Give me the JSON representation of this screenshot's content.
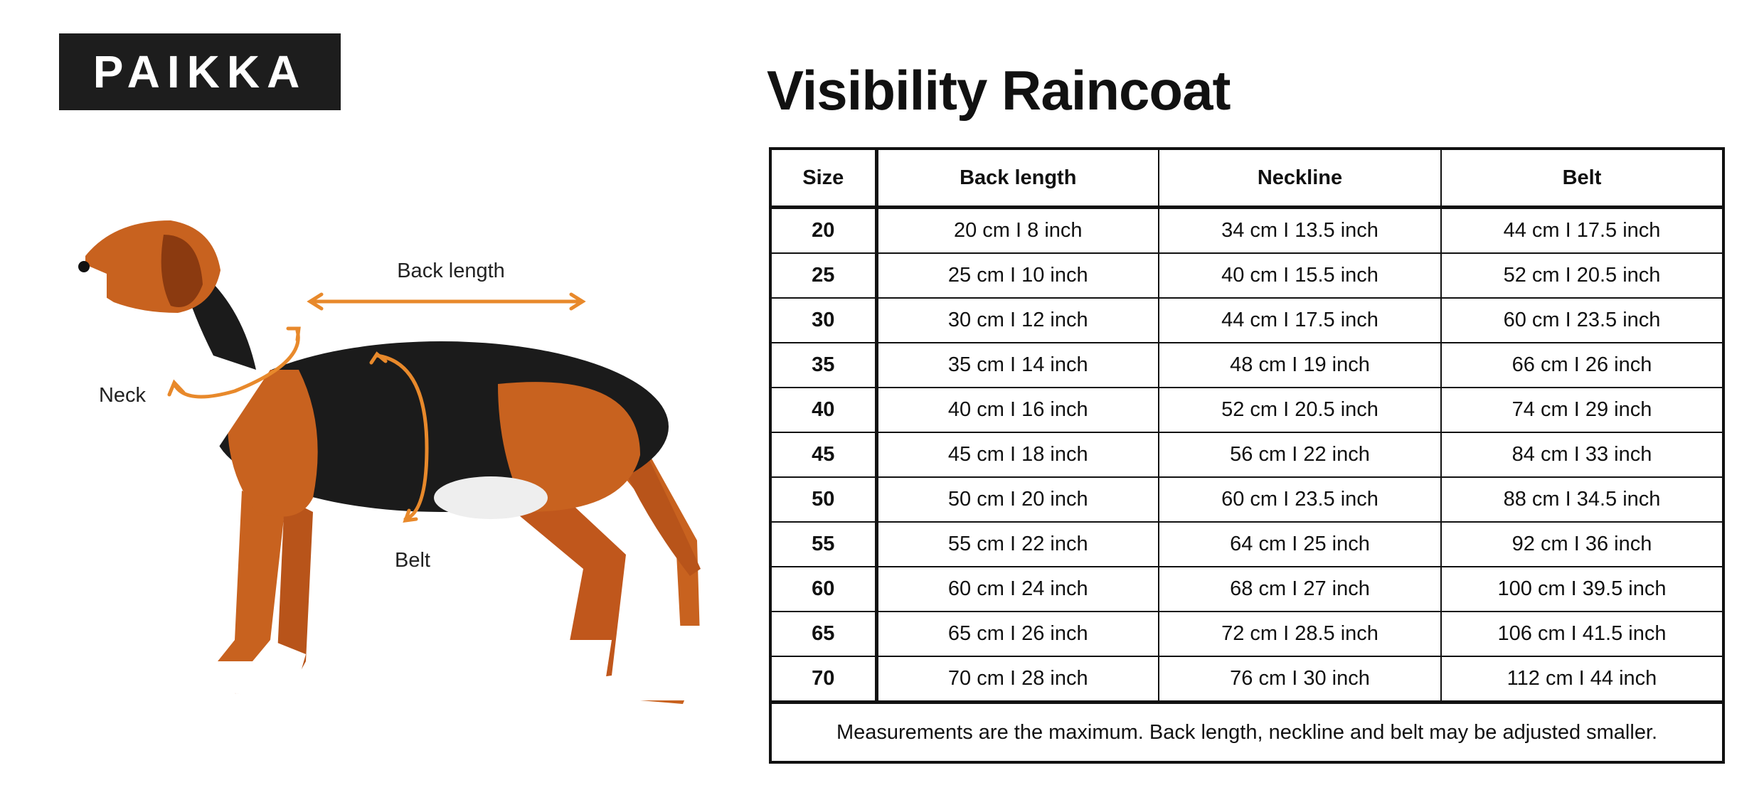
{
  "logo": "PAIKKA",
  "diagram": {
    "labels": [
      "Back length",
      "Neck",
      "Belt"
    ]
  },
  "title": "Visibility Raincoat",
  "table": {
    "header": [
      "Size",
      "Back length",
      "Neckline",
      "Belt"
    ],
    "rows": [
      [
        "20",
        "20 cm I 8 inch",
        "34 cm I 13.5 inch",
        "44 cm I 17.5 inch"
      ],
      [
        "25",
        "25 cm I 10 inch",
        "40 cm I 15.5 inch",
        "52 cm I 20.5 inch"
      ],
      [
        "30",
        "30 cm I 12 inch",
        "44 cm I 17.5 inch",
        "60 cm I 23.5 inch"
      ],
      [
        "35",
        "35 cm I 14 inch",
        "48 cm I 19 inch",
        "66 cm I 26 inch"
      ],
      [
        "40",
        "40 cm I 16 inch",
        "52 cm I 20.5 inch",
        "74 cm I 29 inch"
      ],
      [
        "45",
        "45 cm I 18 inch",
        "56 cm I 22 inch",
        "84 cm I 33 inch"
      ],
      [
        "50",
        "50 cm I 20 inch",
        "60 cm I 23.5 inch",
        "88 cm I 34.5 inch"
      ],
      [
        "55",
        "55 cm I 22 inch",
        "64 cm I 25 inch",
        "92 cm I 36 inch"
      ],
      [
        "60",
        "60 cm I 24 inch",
        "68 cm I 27 inch",
        "100 cm I 39.5 inch"
      ],
      [
        "65",
        "65 cm I 26 inch",
        "72 cm I 28.5 inch",
        "106 cm I 41.5 inch"
      ],
      [
        "70",
        "70 cm I 28 inch",
        "76 cm I 30 inch",
        "112 cm I 44 inch"
      ]
    ],
    "footnote": "Measurements are the maximum. Back length, neckline and belt may be adjusted smaller."
  }
}
